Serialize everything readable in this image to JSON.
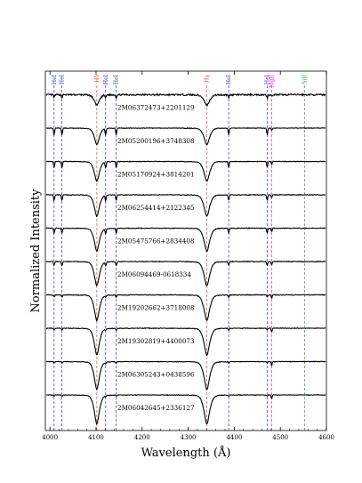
{
  "chart_data": {
    "type": "line",
    "title": "",
    "xlabel": "Wavelength (Å)",
    "ylabel": "Normalized Intensity",
    "xlim": [
      3990,
      4600
    ],
    "xticks": [
      4000,
      4100,
      4200,
      4300,
      4400,
      4500,
      4600
    ],
    "grid": false,
    "line_markers": [
      {
        "label": "HeI",
        "wavelength": 4009,
        "color": "#2b2bd9"
      },
      {
        "label": "HeI",
        "wavelength": 4026,
        "color": "#2b2bd9"
      },
      {
        "label": "Hδ",
        "wavelength": 4101.7,
        "color": "#d94a2b"
      },
      {
        "label": "HeI",
        "wavelength": 4120.8,
        "color": "#2b2bd9"
      },
      {
        "label": "HeI",
        "wavelength": 4143.8,
        "color": "#2b2bd9"
      },
      {
        "label": "Hγ",
        "wavelength": 4340.5,
        "color": "#d94a2b"
      },
      {
        "label": "HeI",
        "wavelength": 4387.9,
        "color": "#2b2bd9"
      },
      {
        "label": "HeI",
        "wavelength": 4471.5,
        "color": "#2b2bd9"
      },
      {
        "label": "MgII",
        "wavelength": 4481.2,
        "color": "#c02bd9"
      },
      {
        "label": "SiII",
        "wavelength": 4552.6,
        "color": "#2ba02b"
      }
    ],
    "series": [
      {
        "name": "2M06372473+2201129",
        "offset": 9,
        "balmer_depth": 0.19,
        "he_depth": 0.055,
        "mg_depth": 0.035,
        "noise": 0.028
      },
      {
        "name": "2M05200196+3748308",
        "offset": 8,
        "balmer_depth": 0.3,
        "he_depth": 0.12,
        "mg_depth": 0.04,
        "noise": 0.01
      },
      {
        "name": "2M05170924+3814201",
        "offset": 7,
        "balmer_depth": 0.36,
        "he_depth": 0.11,
        "mg_depth": 0.05,
        "noise": 0.011
      },
      {
        "name": "2M06254414+2122345",
        "offset": 6,
        "balmer_depth": 0.39,
        "he_depth": 0.1,
        "mg_depth": 0.05,
        "noise": 0.012
      },
      {
        "name": "2M05475766+2834408",
        "offset": 5,
        "balmer_depth": 0.42,
        "he_depth": 0.09,
        "mg_depth": 0.06,
        "noise": 0.012
      },
      {
        "name": "2M06094469-0618334",
        "offset": 4,
        "balmer_depth": 0.44,
        "he_depth": 0.07,
        "mg_depth": 0.06,
        "noise": 0.012
      },
      {
        "name": "2M19202662+3718008",
        "offset": 3,
        "balmer_depth": 0.47,
        "he_depth": 0.04,
        "mg_depth": 0.06,
        "noise": 0.012
      },
      {
        "name": "2M19302819+4400073",
        "offset": 2,
        "balmer_depth": 0.49,
        "he_depth": 0.03,
        "mg_depth": 0.07,
        "noise": 0.011
      },
      {
        "name": "2M06305243+0438596",
        "offset": 1,
        "balmer_depth": 0.51,
        "he_depth": 0.025,
        "mg_depth": 0.07,
        "noise": 0.01
      },
      {
        "name": "2M06042645+2336127",
        "offset": 0,
        "balmer_depth": 0.53,
        "he_depth": 0.02,
        "mg_depth": 0.07,
        "noise": 0.01
      }
    ]
  }
}
